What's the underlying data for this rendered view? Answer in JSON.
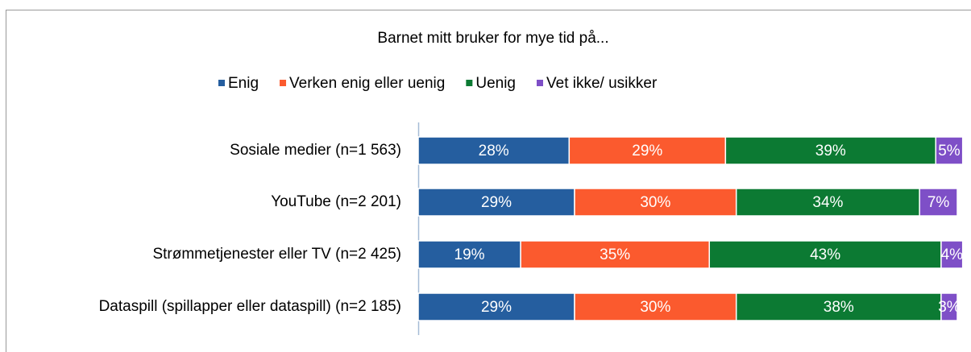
{
  "chart_data": {
    "type": "stacked-bar-horizontal",
    "title": "Barnet mitt bruker for mye tid på...",
    "categories": [
      "Sosiale medier (n=1 563)",
      "YouTube (n=2 201)",
      "Strømmetjenester eller TV (n=2 425)",
      "Dataspill (spillapper eller dataspill) (n=2 185)"
    ],
    "xlim": [
      0,
      100
    ],
    "legend": "top",
    "series": [
      {
        "name": "Enig",
        "color": "#255e9f",
        "values": [
          28,
          29,
          19,
          29
        ],
        "value_labels": [
          "28%",
          "29%",
          "19%",
          "29%"
        ]
      },
      {
        "name": "Verken enig eller uenig",
        "color": "#fb5a2e",
        "values": [
          29,
          30,
          35,
          30
        ],
        "value_labels": [
          "29%",
          "30%",
          "35%",
          "30%"
        ]
      },
      {
        "name": "Uenig",
        "color": "#0c7a33",
        "values": [
          39,
          34,
          43,
          38
        ],
        "value_labels": [
          "39%",
          "34%",
          "43%",
          "38%"
        ]
      },
      {
        "name": "Vet ikke/ usikker",
        "color": "#7e4fc7",
        "values": [
          5,
          7,
          4,
          3
        ],
        "value_labels": [
          "5%",
          "7%",
          "4%",
          "3%"
        ]
      }
    ]
  }
}
